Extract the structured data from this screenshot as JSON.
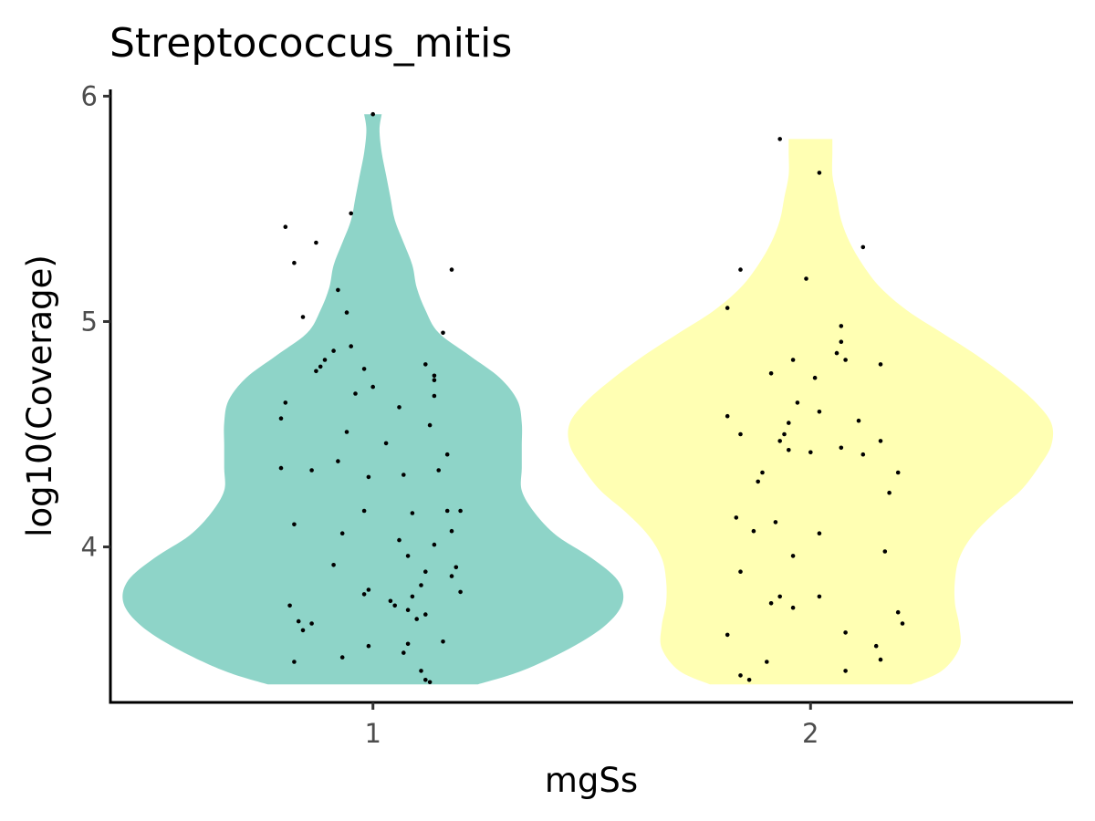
{
  "chart_data": {
    "type": "violin",
    "title": "Streptococcus_mitis",
    "xlabel": "mgSs",
    "ylabel": "log10(Coverage)",
    "categories": [
      "1",
      "2"
    ],
    "ylim": [
      3.31,
      6.03
    ],
    "yticks": [
      4,
      5,
      6
    ],
    "colors": {
      "1": "#8ED4C8",
      "2": "#FFFFB3"
    },
    "violins": [
      {
        "category": "1",
        "profile": [
          [
            3.39,
            0.24
          ],
          [
            3.45,
            0.34
          ],
          [
            3.55,
            0.45
          ],
          [
            3.65,
            0.53
          ],
          [
            3.75,
            0.57
          ],
          [
            3.85,
            0.56
          ],
          [
            3.95,
            0.5
          ],
          [
            4.05,
            0.42
          ],
          [
            4.15,
            0.37
          ],
          [
            4.25,
            0.34
          ],
          [
            4.35,
            0.34
          ],
          [
            4.45,
            0.34
          ],
          [
            4.55,
            0.34
          ],
          [
            4.65,
            0.33
          ],
          [
            4.75,
            0.29
          ],
          [
            4.85,
            0.22
          ],
          [
            4.95,
            0.15
          ],
          [
            5.05,
            0.12
          ],
          [
            5.15,
            0.1
          ],
          [
            5.25,
            0.09
          ],
          [
            5.35,
            0.07
          ],
          [
            5.45,
            0.05
          ],
          [
            5.55,
            0.04
          ],
          [
            5.65,
            0.03
          ],
          [
            5.75,
            0.02
          ],
          [
            5.85,
            0.015
          ],
          [
            5.92,
            0.02
          ]
        ],
        "points": [
          [
            0.8,
            5.42
          ],
          [
            0.95,
            5.48
          ],
          [
            0.82,
            5.26
          ],
          [
            1.18,
            5.23
          ],
          [
            0.87,
            5.35
          ],
          [
            0.92,
            5.14
          ],
          [
            0.94,
            5.04
          ],
          [
            0.84,
            5.02
          ],
          [
            0.95,
            4.89
          ],
          [
            1.16,
            4.95
          ],
          [
            0.91,
            4.87
          ],
          [
            0.89,
            4.83
          ],
          [
            0.88,
            4.8
          ],
          [
            0.87,
            4.78
          ],
          [
            0.98,
            4.79
          ],
          [
            1.12,
            4.81
          ],
          [
            1.14,
            4.74
          ],
          [
            1.14,
            4.76
          ],
          [
            1.0,
            4.71
          ],
          [
            1.14,
            4.67
          ],
          [
            0.96,
            4.68
          ],
          [
            0.8,
            4.64
          ],
          [
            1.06,
            4.62
          ],
          [
            0.79,
            4.57
          ],
          [
            1.13,
            4.54
          ],
          [
            0.94,
            4.51
          ],
          [
            1.03,
            4.46
          ],
          [
            1.17,
            4.41
          ],
          [
            0.92,
            4.38
          ],
          [
            0.79,
            4.35
          ],
          [
            0.86,
            4.34
          ],
          [
            1.15,
            4.34
          ],
          [
            1.07,
            4.32
          ],
          [
            0.99,
            4.31
          ],
          [
            1.17,
            4.16
          ],
          [
            1.2,
            4.16
          ],
          [
            0.98,
            4.16
          ],
          [
            1.09,
            4.15
          ],
          [
            0.82,
            4.1
          ],
          [
            1.18,
            4.07
          ],
          [
            0.93,
            4.06
          ],
          [
            1.06,
            4.03
          ],
          [
            1.14,
            4.01
          ],
          [
            1.08,
            3.96
          ],
          [
            0.91,
            3.92
          ],
          [
            1.19,
            3.91
          ],
          [
            1.12,
            3.89
          ],
          [
            1.18,
            3.87
          ],
          [
            1.11,
            3.83
          ],
          [
            1.2,
            3.8
          ],
          [
            0.99,
            3.81
          ],
          [
            0.98,
            3.79
          ],
          [
            1.09,
            3.78
          ],
          [
            1.04,
            3.76
          ],
          [
            1.05,
            3.74
          ],
          [
            0.81,
            3.74
          ],
          [
            1.08,
            3.72
          ],
          [
            1.12,
            3.7
          ],
          [
            1.1,
            3.68
          ],
          [
            0.83,
            3.67
          ],
          [
            0.86,
            3.66
          ],
          [
            0.84,
            3.63
          ],
          [
            1.16,
            3.58
          ],
          [
            0.99,
            3.56
          ],
          [
            1.08,
            3.57
          ],
          [
            0.93,
            3.51
          ],
          [
            1.07,
            3.53
          ],
          [
            0.82,
            3.49
          ],
          [
            1.11,
            3.45
          ],
          [
            1.12,
            3.41
          ],
          [
            1.13,
            3.4
          ],
          [
            1.0,
            5.92
          ]
        ]
      },
      {
        "category": "2",
        "profile": [
          [
            3.39,
            0.23
          ],
          [
            3.45,
            0.3
          ],
          [
            3.55,
            0.34
          ],
          [
            3.65,
            0.34
          ],
          [
            3.75,
            0.33
          ],
          [
            3.85,
            0.33
          ],
          [
            3.95,
            0.34
          ],
          [
            4.05,
            0.37
          ],
          [
            4.15,
            0.42
          ],
          [
            4.25,
            0.48
          ],
          [
            4.35,
            0.52
          ],
          [
            4.45,
            0.55
          ],
          [
            4.55,
            0.55
          ],
          [
            4.65,
            0.51
          ],
          [
            4.75,
            0.45
          ],
          [
            4.85,
            0.38
          ],
          [
            4.95,
            0.3
          ],
          [
            5.05,
            0.22
          ],
          [
            5.15,
            0.16
          ],
          [
            5.25,
            0.12
          ],
          [
            5.35,
            0.09
          ],
          [
            5.45,
            0.07
          ],
          [
            5.55,
            0.06
          ],
          [
            5.65,
            0.05
          ],
          [
            5.75,
            0.05
          ],
          [
            5.81,
            0.05
          ]
        ],
        "points": [
          [
            1.93,
            5.81
          ],
          [
            2.02,
            5.66
          ],
          [
            2.12,
            5.33
          ],
          [
            1.84,
            5.23
          ],
          [
            1.99,
            5.19
          ],
          [
            1.81,
            5.06
          ],
          [
            2.07,
            4.98
          ],
          [
            2.07,
            4.91
          ],
          [
            2.06,
            4.86
          ],
          [
            2.08,
            4.83
          ],
          [
            1.96,
            4.83
          ],
          [
            2.16,
            4.81
          ],
          [
            1.91,
            4.77
          ],
          [
            2.01,
            4.75
          ],
          [
            1.97,
            4.64
          ],
          [
            2.02,
            4.6
          ],
          [
            1.81,
            4.58
          ],
          [
            2.11,
            4.56
          ],
          [
            1.95,
            4.55
          ],
          [
            1.84,
            4.5
          ],
          [
            1.94,
            4.5
          ],
          [
            1.93,
            4.47
          ],
          [
            2.16,
            4.47
          ],
          [
            2.07,
            4.44
          ],
          [
            1.95,
            4.43
          ],
          [
            2.0,
            4.42
          ],
          [
            2.12,
            4.41
          ],
          [
            2.2,
            4.33
          ],
          [
            1.89,
            4.33
          ],
          [
            1.88,
            4.29
          ],
          [
            2.18,
            4.24
          ],
          [
            1.83,
            4.13
          ],
          [
            1.92,
            4.11
          ],
          [
            1.87,
            4.07
          ],
          [
            2.02,
            4.06
          ],
          [
            2.17,
            3.98
          ],
          [
            1.96,
            3.96
          ],
          [
            1.84,
            3.89
          ],
          [
            1.93,
            3.78
          ],
          [
            2.02,
            3.78
          ],
          [
            1.91,
            3.75
          ],
          [
            1.96,
            3.73
          ],
          [
            2.2,
            3.71
          ],
          [
            2.21,
            3.66
          ],
          [
            2.08,
            3.62
          ],
          [
            1.81,
            3.61
          ],
          [
            2.15,
            3.56
          ],
          [
            2.16,
            3.5
          ],
          [
            1.9,
            3.49
          ],
          [
            2.08,
            3.45
          ],
          [
            1.84,
            3.43
          ],
          [
            1.86,
            3.41
          ]
        ]
      }
    ],
    "point_size": "small",
    "jitter": true,
    "grid": false,
    "legend": "none"
  }
}
